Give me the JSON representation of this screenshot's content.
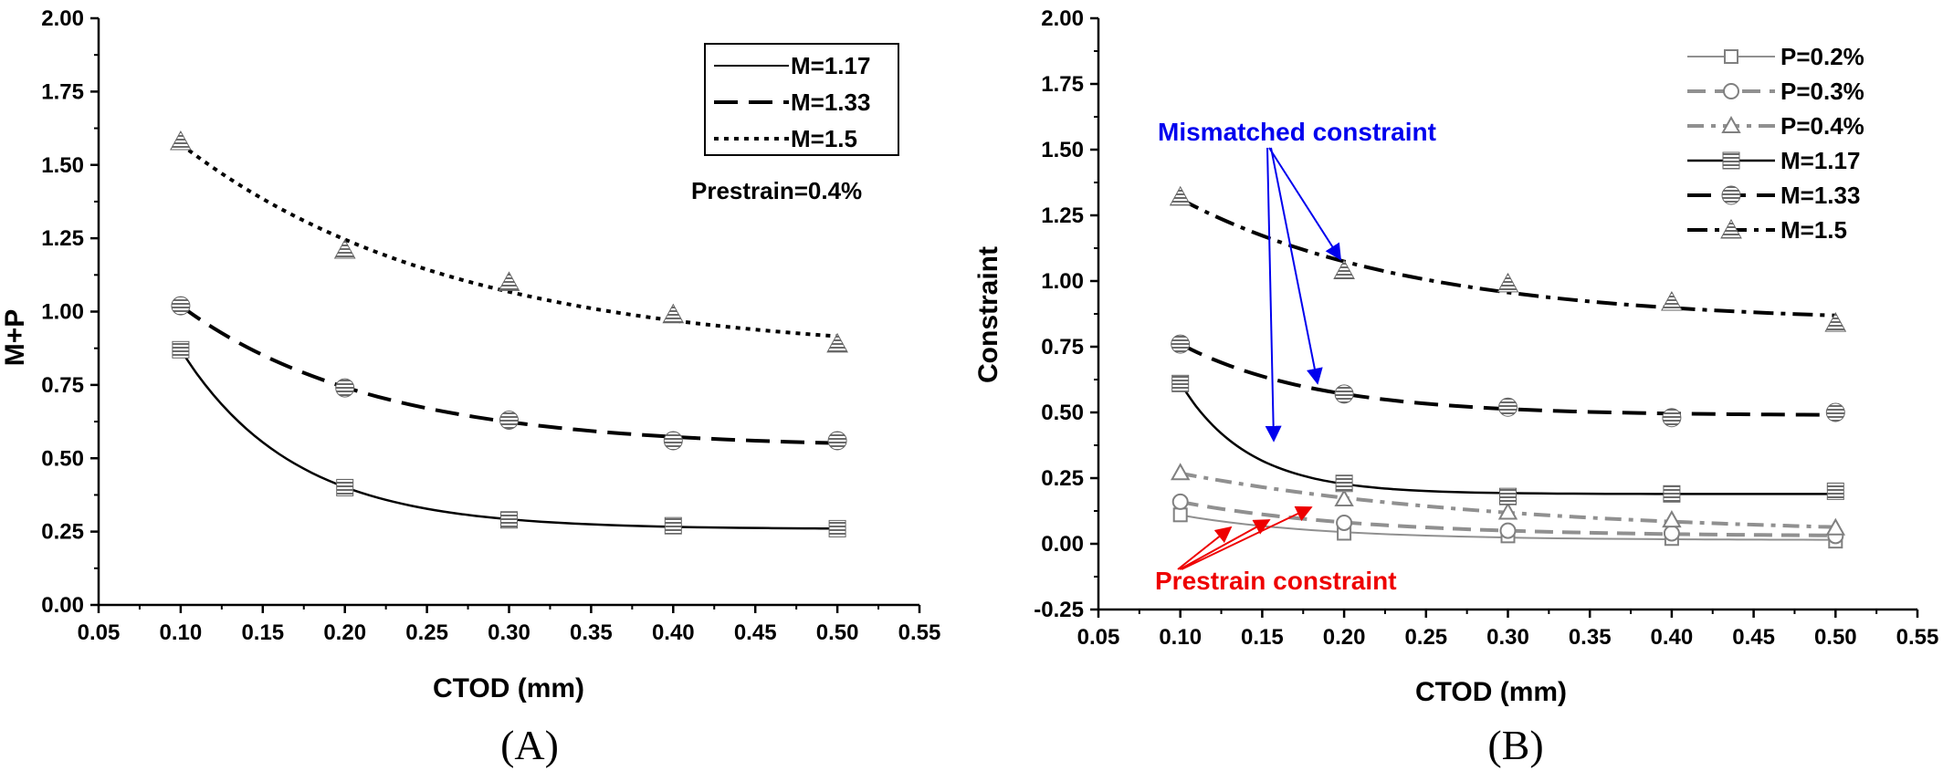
{
  "chart_data": [
    {
      "type": "line",
      "panel_label": "(A)",
      "xlabel": "CTOD (mm)",
      "ylabel": "M+P",
      "xlim": [
        0.05,
        0.55
      ],
      "ylim": [
        0.0,
        2.0
      ],
      "xticks": [
        "0.05",
        "0.10",
        "0.15",
        "0.20",
        "0.25",
        "0.30",
        "0.35",
        "0.40",
        "0.45",
        "0.50",
        "0.55"
      ],
      "yticks": [
        "0.00",
        "0.25",
        "0.50",
        "0.75",
        "1.00",
        "1.25",
        "1.50",
        "1.75",
        "2.00"
      ],
      "grid": false,
      "legend_position": "top-right",
      "annotation": "Prestrain=0.4%",
      "series": [
        {
          "name": "M=1.17",
          "marker": "square",
          "line": "solid",
          "x": [
            0.1,
            0.2,
            0.3,
            0.4,
            0.5
          ],
          "y": [
            0.87,
            0.4,
            0.29,
            0.27,
            0.26
          ]
        },
        {
          "name": "M=1.33",
          "marker": "circle",
          "line": "dash",
          "x": [
            0.1,
            0.2,
            0.3,
            0.4,
            0.5
          ],
          "y": [
            1.02,
            0.74,
            0.63,
            0.56,
            0.56
          ]
        },
        {
          "name": "M=1.5",
          "marker": "triangle",
          "line": "dot",
          "x": [
            0.1,
            0.2,
            0.3,
            0.4,
            0.5
          ],
          "y": [
            1.58,
            1.21,
            1.1,
            0.99,
            0.89
          ]
        }
      ]
    },
    {
      "type": "line",
      "panel_label": "(B)",
      "xlabel": "CTOD (mm)",
      "ylabel": "Constraint",
      "xlim": [
        0.05,
        0.55
      ],
      "ylim": [
        -0.25,
        2.0
      ],
      "xticks": [
        "0.05",
        "0.10",
        "0.15",
        "0.20",
        "0.25",
        "0.30",
        "0.35",
        "0.40",
        "0.45",
        "0.50",
        "0.55"
      ],
      "yticks": [
        "-0.25",
        "0.00",
        "0.25",
        "0.50",
        "0.75",
        "1.00",
        "1.25",
        "1.50",
        "1.75",
        "2.00"
      ],
      "grid": false,
      "legend_position": "top-right",
      "annotations": [
        {
          "text": "Mismatched constraint",
          "color": "#0000ee"
        },
        {
          "text": "Prestrain constraint",
          "color": "#ee0000"
        }
      ],
      "series": [
        {
          "name": "P=0.2%",
          "marker": "square-open",
          "line": "solid-gray",
          "x": [
            0.1,
            0.2,
            0.3,
            0.4,
            0.5
          ],
          "y": [
            0.11,
            0.04,
            0.03,
            0.02,
            0.01
          ]
        },
        {
          "name": "P=0.3%",
          "marker": "circle-open",
          "line": "dash-gray",
          "x": [
            0.1,
            0.2,
            0.3,
            0.4,
            0.5
          ],
          "y": [
            0.16,
            0.08,
            0.05,
            0.04,
            0.03
          ]
        },
        {
          "name": "P=0.4%",
          "marker": "triangle-open",
          "line": "dashdot-gray",
          "x": [
            0.1,
            0.2,
            0.3,
            0.4,
            0.5
          ],
          "y": [
            0.27,
            0.17,
            0.12,
            0.09,
            0.06
          ]
        },
        {
          "name": "M=1.17",
          "marker": "square",
          "line": "solid",
          "x": [
            0.1,
            0.2,
            0.3,
            0.4,
            0.5
          ],
          "y": [
            0.61,
            0.23,
            0.18,
            0.19,
            0.2
          ]
        },
        {
          "name": "M=1.33",
          "marker": "circle",
          "line": "dash",
          "x": [
            0.1,
            0.2,
            0.3,
            0.4,
            0.5
          ],
          "y": [
            0.76,
            0.57,
            0.52,
            0.48,
            0.5
          ]
        },
        {
          "name": "M=1.5",
          "marker": "triangle",
          "line": "dashdot",
          "x": [
            0.1,
            0.2,
            0.3,
            0.4,
            0.5
          ],
          "y": [
            1.32,
            1.04,
            0.99,
            0.92,
            0.84
          ]
        }
      ]
    }
  ],
  "colors": {
    "mismatched_arrow": "#0000ee",
    "prestrain_arrow": "#ee0000",
    "marker_fill": "#888888",
    "marker_open_stroke": "#808080",
    "gray_line": "#909090"
  }
}
